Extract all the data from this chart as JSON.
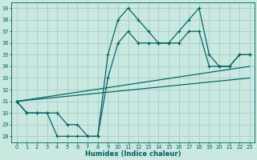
{
  "xlabel": "Humidex (Indice chaleur)",
  "xlim": [
    -0.5,
    23.5
  ],
  "ylim": [
    27.5,
    39.5
  ],
  "yticks": [
    28,
    29,
    30,
    31,
    32,
    33,
    34,
    35,
    36,
    37,
    38,
    39
  ],
  "xticks": [
    0,
    1,
    2,
    3,
    4,
    5,
    6,
    7,
    8,
    9,
    10,
    11,
    12,
    13,
    14,
    15,
    16,
    17,
    18,
    19,
    20,
    21,
    22,
    23
  ],
  "background_color": "#c8e8e0",
  "line_color": "#005f5f",
  "grid_color": "#aacccc",
  "line1_y": [
    31,
    30,
    30,
    30,
    28,
    28,
    28,
    28,
    28,
    35,
    38,
    39,
    38,
    37,
    36,
    36,
    37,
    38,
    39,
    35,
    34,
    34,
    35,
    35
  ],
  "line2_y": [
    31,
    30,
    30,
    30,
    30,
    29,
    29,
    28,
    28,
    33,
    36,
    37,
    36,
    36,
    36,
    36,
    36,
    37,
    37,
    34,
    34,
    34,
    35,
    35
  ],
  "trend1_x": [
    0,
    23
  ],
  "trend1_y": [
    31,
    34
  ],
  "trend2_x": [
    0,
    23
  ],
  "trend2_y": [
    31,
    33
  ]
}
